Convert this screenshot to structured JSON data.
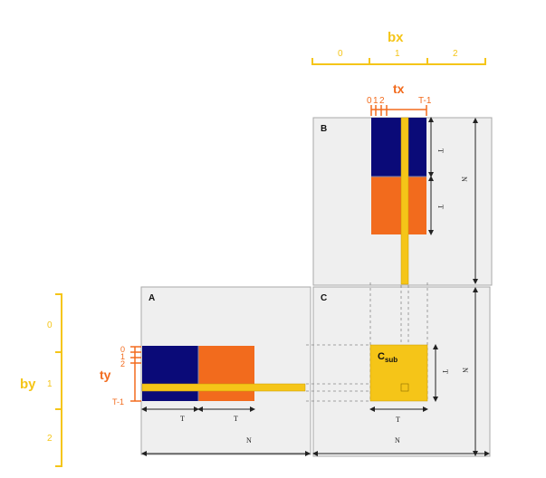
{
  "labels": {
    "bx": "bx",
    "by": "by",
    "tx": "tx",
    "ty": "ty",
    "block_x": [
      "0",
      "1",
      "2"
    ],
    "block_y": [
      "0",
      "1",
      "2"
    ],
    "tx_ticks": [
      "0",
      "1",
      "2",
      "T-1"
    ],
    "ty_ticks": [
      "0",
      "1",
      "2",
      "T-1"
    ],
    "matrix_a": "A",
    "matrix_b": "B",
    "matrix_c": "C",
    "csub_base": "C",
    "csub_sub": "sub",
    "dim_t": "T",
    "dim_n": "N"
  },
  "colors": {
    "yellow": "#f5c518",
    "orange": "#f26b1d",
    "navy": "#0a0a78",
    "matrix_bg": "#efefef",
    "matrix_border": "#a8a8a8",
    "dim_line": "#222222"
  }
}
